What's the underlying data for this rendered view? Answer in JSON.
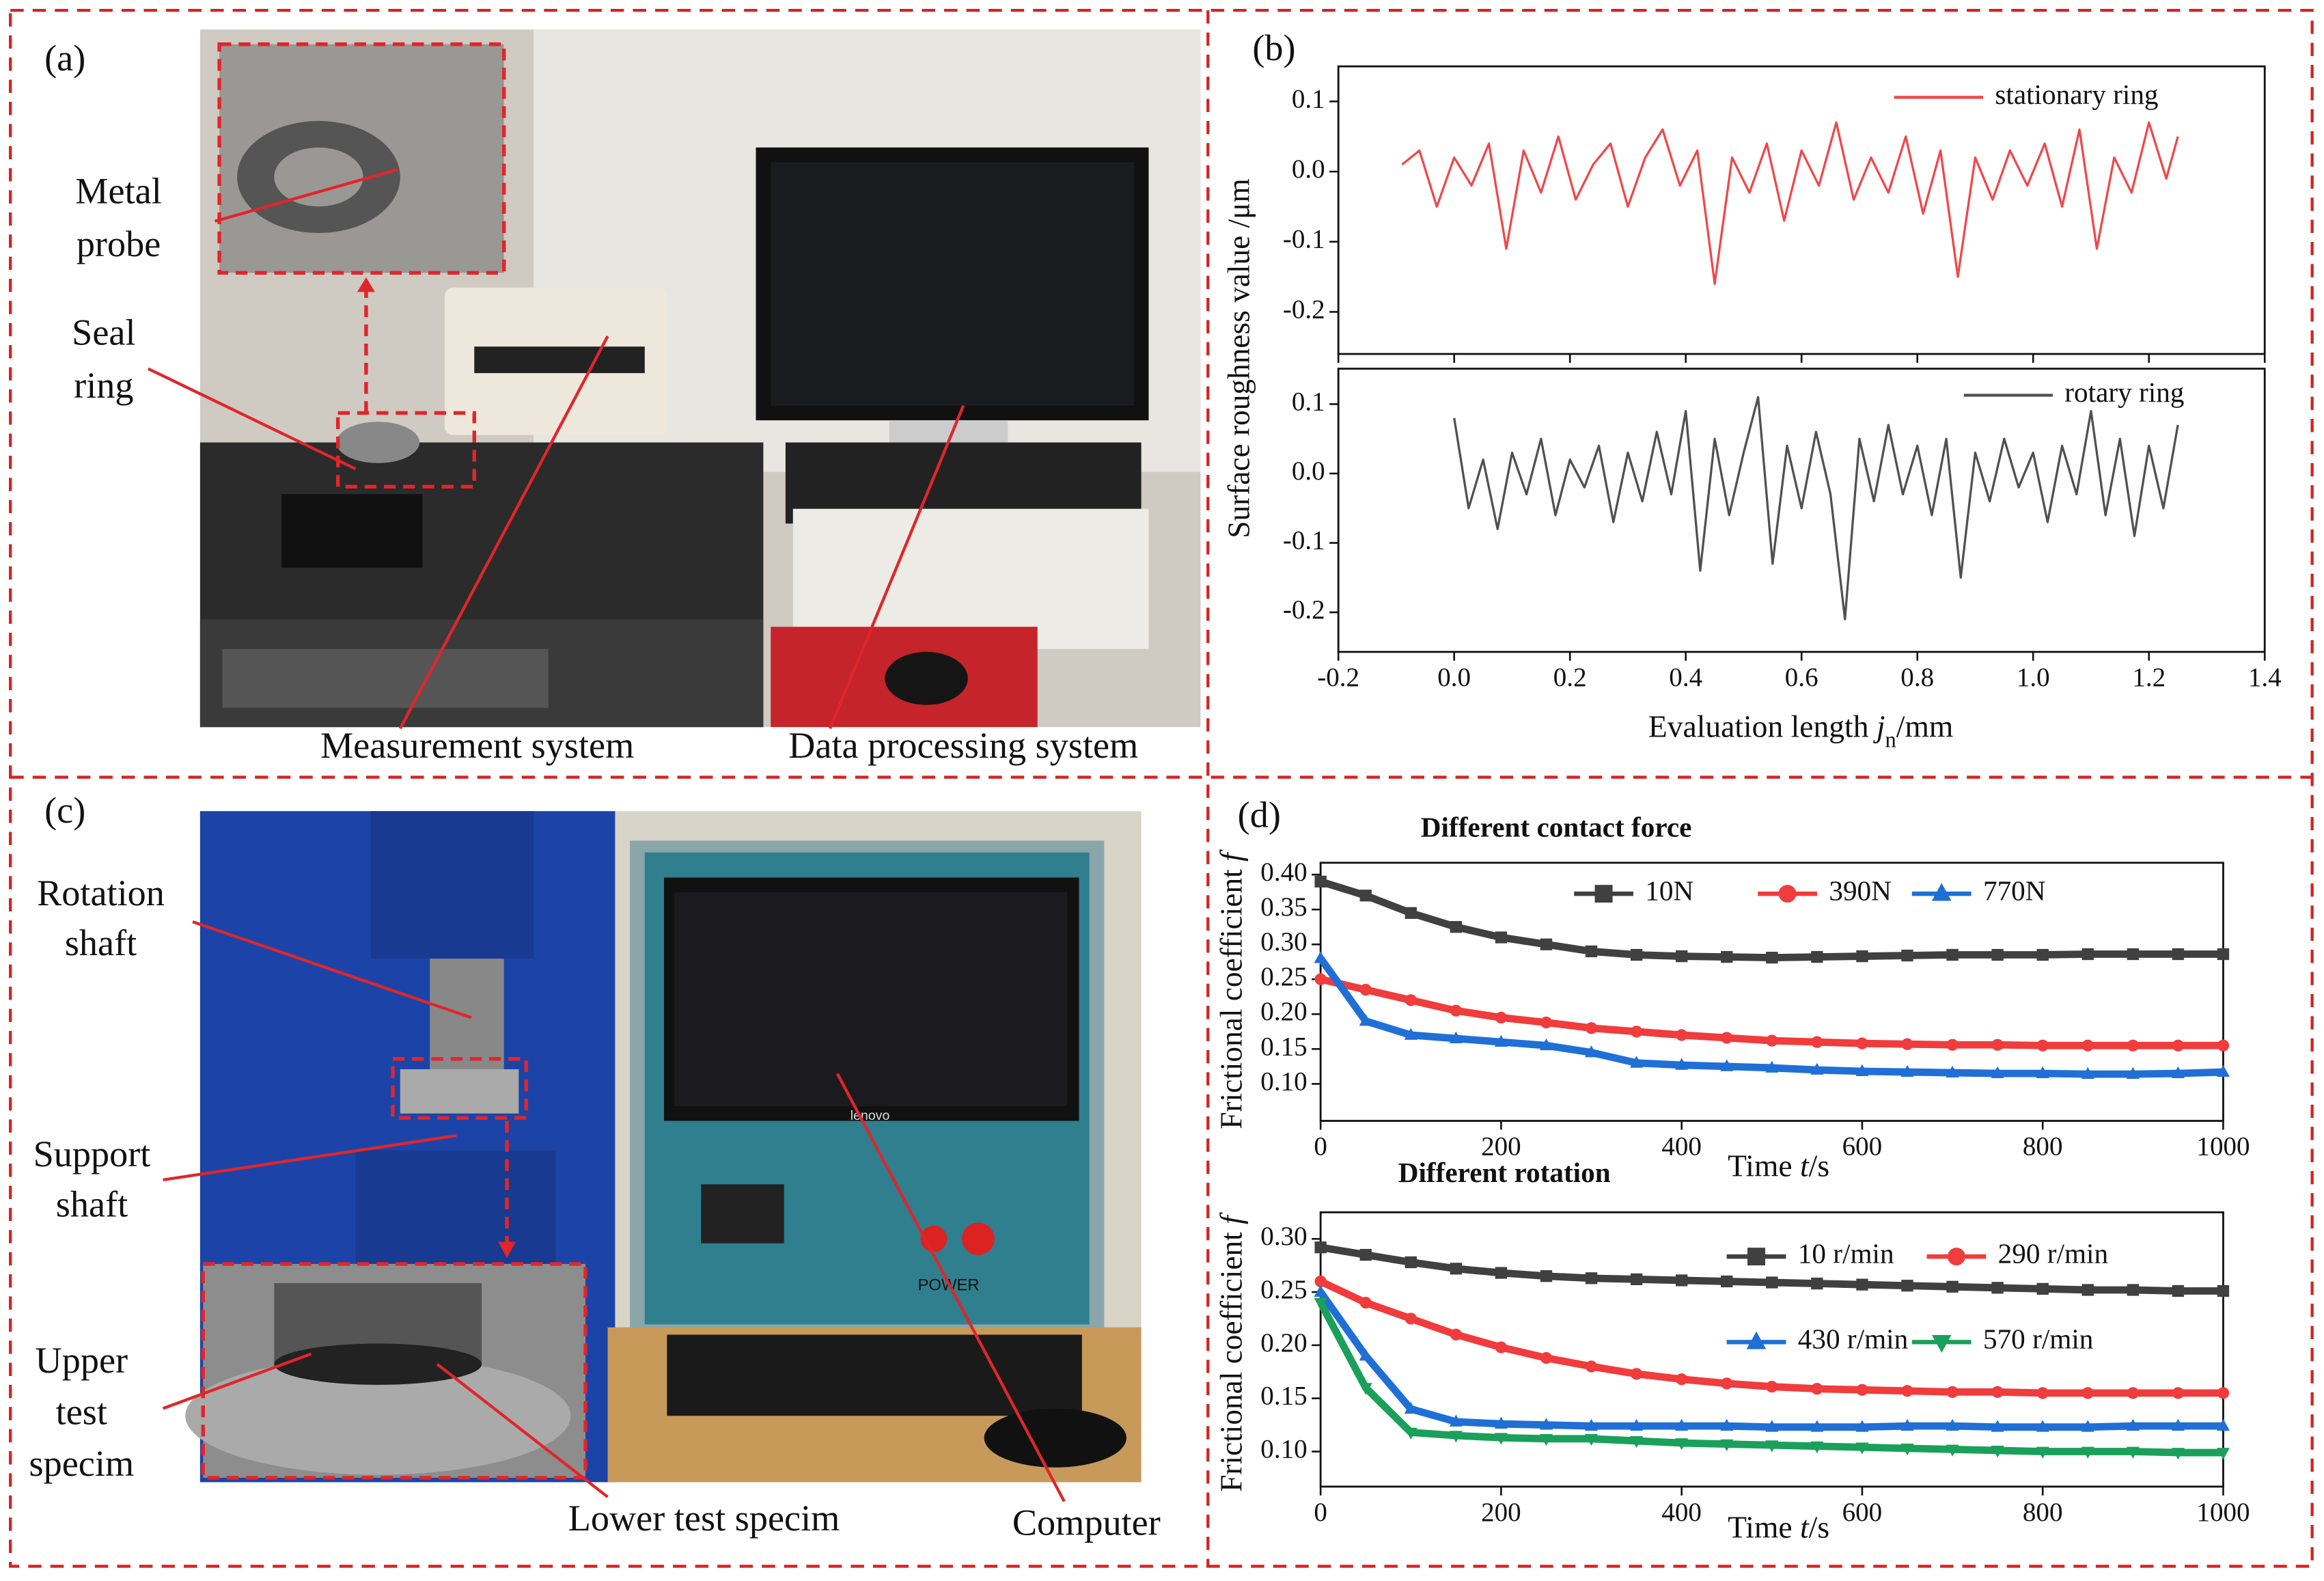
{
  "panel_a": {
    "label": "(a)",
    "annotations": [
      {
        "lines": [
          "Metal",
          "probe"
        ]
      },
      {
        "lines": [
          "Seal",
          "ring"
        ]
      },
      {
        "lines": [
          "Measurement system"
        ]
      },
      {
        "lines": [
          "Data processing system"
        ]
      }
    ]
  },
  "panel_b": {
    "label": "(b)"
  },
  "panel_c": {
    "label": "(c)",
    "annotations": [
      {
        "lines": [
          "Rotation",
          "shaft"
        ]
      },
      {
        "lines": [
          "Support",
          "shaft"
        ]
      },
      {
        "lines": [
          "Upper",
          "test",
          "specim"
        ]
      },
      {
        "lines": [
          "Lower test specim"
        ]
      },
      {
        "lines": [
          "Computer"
        ]
      }
    ],
    "photo_texts": [
      "lenovo",
      "POWER"
    ]
  },
  "panel_d": {
    "label": "(d)"
  },
  "chart_data": [
    {
      "type": "line",
      "y_label": "Surface roughness  value /μm",
      "x": [
        -0.09,
        -0.06,
        -0.03,
        0,
        0.03,
        0.06,
        0.09,
        0.12,
        0.15,
        0.18,
        0.21,
        0.24,
        0.27,
        0.3,
        0.33,
        0.36,
        0.39,
        0.42,
        0.45,
        0.48,
        0.51,
        0.54,
        0.57,
        0.6,
        0.63,
        0.66,
        0.69,
        0.72,
        0.75,
        0.78,
        0.81,
        0.84,
        0.87,
        0.9,
        0.93,
        0.96,
        0.99,
        1.02,
        1.05,
        1.08,
        1.11,
        1.14,
        1.17,
        1.2,
        1.23,
        1.25
      ],
      "series": [
        {
          "name": "stationary ring",
          "color": "#f0474a",
          "values": [
            0.01,
            0.03,
            -0.05,
            0.02,
            -0.02,
            0.04,
            -0.11,
            0.03,
            -0.03,
            0.05,
            -0.04,
            0.01,
            0.04,
            -0.05,
            0.02,
            0.06,
            -0.02,
            0.03,
            -0.16,
            0.02,
            -0.03,
            0.04,
            -0.07,
            0.03,
            -0.02,
            0.07,
            -0.04,
            0.02,
            -0.03,
            0.05,
            -0.06,
            0.03,
            -0.15,
            0.02,
            -0.04,
            0.03,
            -0.02,
            0.04,
            -0.05,
            0.06,
            -0.11,
            0.02,
            -0.03,
            0.07,
            -0.01,
            0.05
          ]
        }
      ],
      "xlim": [
        -0.2,
        1.4
      ],
      "xticks": [
        -0.2,
        {
          "value": 0,
          "label": "0.0"
        },
        0.2,
        0.4,
        0.6,
        0.8,
        {
          "value": 1,
          "label": "1.0"
        },
        1.2,
        1.4
      ],
      "xtick_labels": false,
      "ylim": [
        -0.26,
        0.15
      ],
      "yticks": [
        0.1,
        {
          "value": 0,
          "label": "0.0"
        },
        -0.1,
        -0.2
      ]
    },
    {
      "type": "line",
      "x_label": [
        "Evaluation length ",
        "j",
        "n",
        "/mm"
      ],
      "x": [
        0,
        0.025,
        0.05,
        0.075,
        0.1,
        0.125,
        0.15,
        0.175,
        0.2,
        0.225,
        0.25,
        0.275,
        0.3,
        0.325,
        0.35,
        0.375,
        0.4,
        0.425,
        0.45,
        0.475,
        0.5,
        0.525,
        0.55,
        0.575,
        0.6,
        0.625,
        0.65,
        0.675,
        0.7,
        0.725,
        0.75,
        0.775,
        0.8,
        0.825,
        0.85,
        0.875,
        0.9,
        0.925,
        0.95,
        0.975,
        1,
        1.025,
        1.05,
        1.075,
        1.1,
        1.125,
        1.15,
        1.175,
        1.2,
        1.225,
        1.25
      ],
      "series": [
        {
          "name": "rotary ring",
          "color": "#505050",
          "values": [
            0.08,
            -0.05,
            0.02,
            -0.08,
            0.03,
            -0.03,
            0.05,
            -0.06,
            0.02,
            -0.02,
            0.04,
            -0.07,
            0.03,
            -0.04,
            0.06,
            -0.03,
            0.09,
            -0.14,
            0.05,
            -0.06,
            0.03,
            0.11,
            -0.13,
            0.04,
            -0.05,
            0.06,
            -0.03,
            -0.21,
            0.05,
            -0.04,
            0.07,
            -0.03,
            0.04,
            -0.06,
            0.05,
            -0.15,
            0.03,
            -0.04,
            0.05,
            -0.02,
            0.03,
            -0.07,
            0.04,
            -0.03,
            0.09,
            -0.06,
            0.05,
            -0.09,
            0.04,
            -0.05,
            0.07
          ]
        }
      ],
      "xlim": [
        -0.2,
        1.4
      ],
      "xticks": [
        -0.2,
        {
          "value": 0,
          "label": "0.0"
        },
        0.2,
        0.4,
        0.6,
        0.8,
        {
          "value": 1,
          "label": "1.0"
        },
        1.2,
        1.4
      ],
      "ylim": [
        -0.257,
        0.151
      ],
      "yticks": [
        0.1,
        {
          "value": 0,
          "label": "0.0"
        },
        -0.1,
        -0.2
      ]
    },
    {
      "type": "line",
      "title": "Different contact force",
      "y_label": [
        "Frictional coefficient ",
        "f"
      ],
      "x_label": [
        "Time ",
        "t",
        "/s"
      ],
      "x": [
        0,
        50,
        100,
        150,
        200,
        250,
        300,
        350,
        400,
        450,
        500,
        550,
        600,
        650,
        700,
        750,
        800,
        850,
        900,
        950,
        1000
      ],
      "series": [
        {
          "name": "10N",
          "color": "#404040",
          "marker": "square",
          "values": [
            0.39,
            0.37,
            0.345,
            0.325,
            0.31,
            0.3,
            0.29,
            0.285,
            0.283,
            0.282,
            0.281,
            0.282,
            0.283,
            0.284,
            0.285,
            0.285,
            0.285,
            0.286,
            0.286,
            0.286,
            0.286
          ]
        },
        {
          "name": "390N",
          "color": "#f03c3c",
          "marker": "circle",
          "values": [
            0.25,
            0.235,
            0.22,
            0.205,
            0.195,
            0.188,
            0.18,
            0.175,
            0.17,
            0.166,
            0.162,
            0.16,
            0.158,
            0.157,
            0.156,
            0.156,
            0.155,
            0.155,
            0.155,
            0.155,
            0.155
          ]
        },
        {
          "name": "770N",
          "color": "#1f6fd6",
          "marker": "triangle",
          "values": [
            0.28,
            0.19,
            0.17,
            0.165,
            0.16,
            0.155,
            0.145,
            0.13,
            0.127,
            0.125,
            0.123,
            0.12,
            0.118,
            0.117,
            0.116,
            0.115,
            0.115,
            0.114,
            0.114,
            0.115,
            0.117
          ]
        }
      ],
      "xlim": [
        0,
        1000
      ],
      "xticks": [
        0,
        200,
        400,
        600,
        800,
        1000
      ],
      "ylim": [
        0.047,
        0.417
      ],
      "yticks": [
        {
          "value": 0.4,
          "label": "0.40"
        },
        0.35,
        {
          "value": 0.3,
          "label": "0.30"
        },
        0.25,
        {
          "value": 0.2,
          "label": "0.20"
        },
        0.15,
        {
          "value": 0.1,
          "label": "0.10"
        }
      ]
    },
    {
      "type": "line",
      "title": "Different rotation",
      "y_label": [
        "Frictional coefficient ",
        "f"
      ],
      "x_label": [
        "Time ",
        "t",
        "/s"
      ],
      "x": [
        0,
        50,
        100,
        150,
        200,
        250,
        300,
        350,
        400,
        450,
        500,
        550,
        600,
        650,
        700,
        750,
        800,
        850,
        900,
        950,
        1000
      ],
      "series": [
        {
          "name": "10 r/min",
          "color": "#404040",
          "marker": "square",
          "values": [
            0.292,
            0.285,
            0.278,
            0.272,
            0.268,
            0.265,
            0.263,
            0.262,
            0.261,
            0.26,
            0.259,
            0.258,
            0.257,
            0.256,
            0.255,
            0.254,
            0.253,
            0.252,
            0.252,
            0.251,
            0.251
          ]
        },
        {
          "name": "290 r/min",
          "color": "#f03c3c",
          "marker": "circle",
          "values": [
            0.26,
            0.24,
            0.225,
            0.21,
            0.198,
            0.188,
            0.18,
            0.173,
            0.168,
            0.164,
            0.161,
            0.159,
            0.158,
            0.157,
            0.156,
            0.156,
            0.155,
            0.155,
            0.155,
            0.155,
            0.155
          ]
        },
        {
          "name": "430 r/min",
          "color": "#1f6fd6",
          "marker": "triangle",
          "values": [
            0.25,
            0.19,
            0.14,
            0.128,
            0.126,
            0.125,
            0.124,
            0.124,
            0.124,
            0.124,
            0.123,
            0.123,
            0.123,
            0.124,
            0.124,
            0.123,
            0.123,
            0.123,
            0.124,
            0.124,
            0.124
          ]
        },
        {
          "name": "570 r/min",
          "color": "#1aa05a",
          "marker": "triangle-down",
          "values": [
            0.24,
            0.16,
            0.118,
            0.115,
            0.113,
            0.112,
            0.112,
            0.11,
            0.108,
            0.107,
            0.106,
            0.105,
            0.104,
            0.103,
            0.102,
            0.101,
            0.1,
            0.1,
            0.1,
            0.099,
            0.099
          ]
        }
      ],
      "xlim": [
        0,
        1000
      ],
      "xticks": [
        0,
        200,
        400,
        600,
        800,
        1000
      ],
      "ylim": [
        0.067,
        0.325
      ],
      "yticks": [
        {
          "value": 0.3,
          "label": "0.30"
        },
        0.25,
        {
          "value": 0.2,
          "label": "0.20"
        },
        0.15,
        {
          "value": 0.1,
          "label": "0.10"
        }
      ]
    }
  ]
}
